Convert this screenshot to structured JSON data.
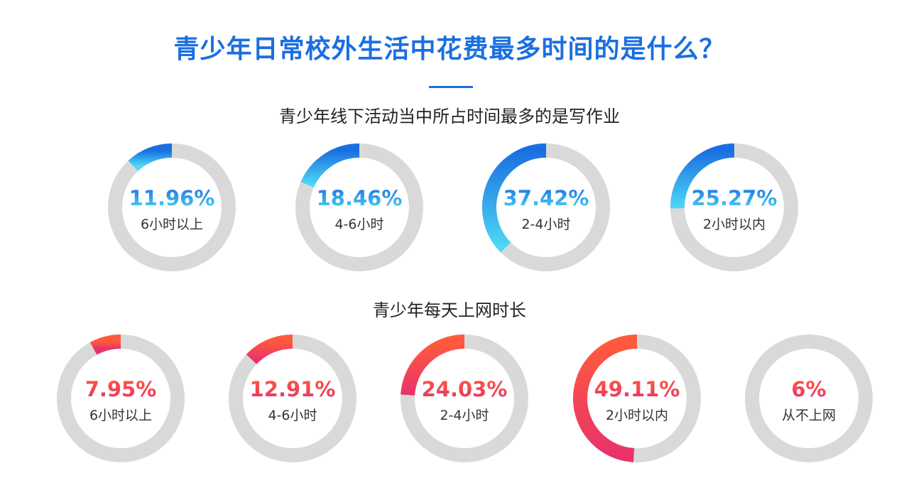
{
  "title": "青少年日常校外生活中花费最多时间的是什么？",
  "colors": {
    "title": "#1a6fe0",
    "track": "#d9d9d9",
    "blue_start": "#1a6fe0",
    "blue_end": "#4dd8f5",
    "red_start": "#ff5a3c",
    "red_end": "#e8336a"
  },
  "chart_data": [
    {
      "type": "pie",
      "subtype": "donut-progress",
      "title": "青少年线下活动当中所占时间最多的是写作业",
      "categories": [
        "6小时以上",
        "4-6小时",
        "2-4小时",
        "2小时以内"
      ],
      "values": [
        11.96,
        18.46,
        37.42,
        25.27
      ],
      "value_labels": [
        "11.96%",
        "18.46%",
        "37.42%",
        "25.27%"
      ],
      "unit": "%",
      "direction": "counterclockwise-from-top"
    },
    {
      "type": "pie",
      "subtype": "donut-progress",
      "title": "青少年每天上网时长",
      "categories": [
        "6小时以上",
        "4-6小时",
        "2-4小时",
        "2小时以内",
        "从不上网"
      ],
      "values": [
        7.95,
        12.91,
        24.03,
        49.11,
        6
      ],
      "value_labels": [
        "7.95%",
        "12.91%",
        "24.03%",
        "49.11%",
        "6%"
      ],
      "unit": "%",
      "direction": "counterclockwise-from-top",
      "arc_drawn": [
        true,
        true,
        true,
        true,
        false
      ]
    }
  ]
}
